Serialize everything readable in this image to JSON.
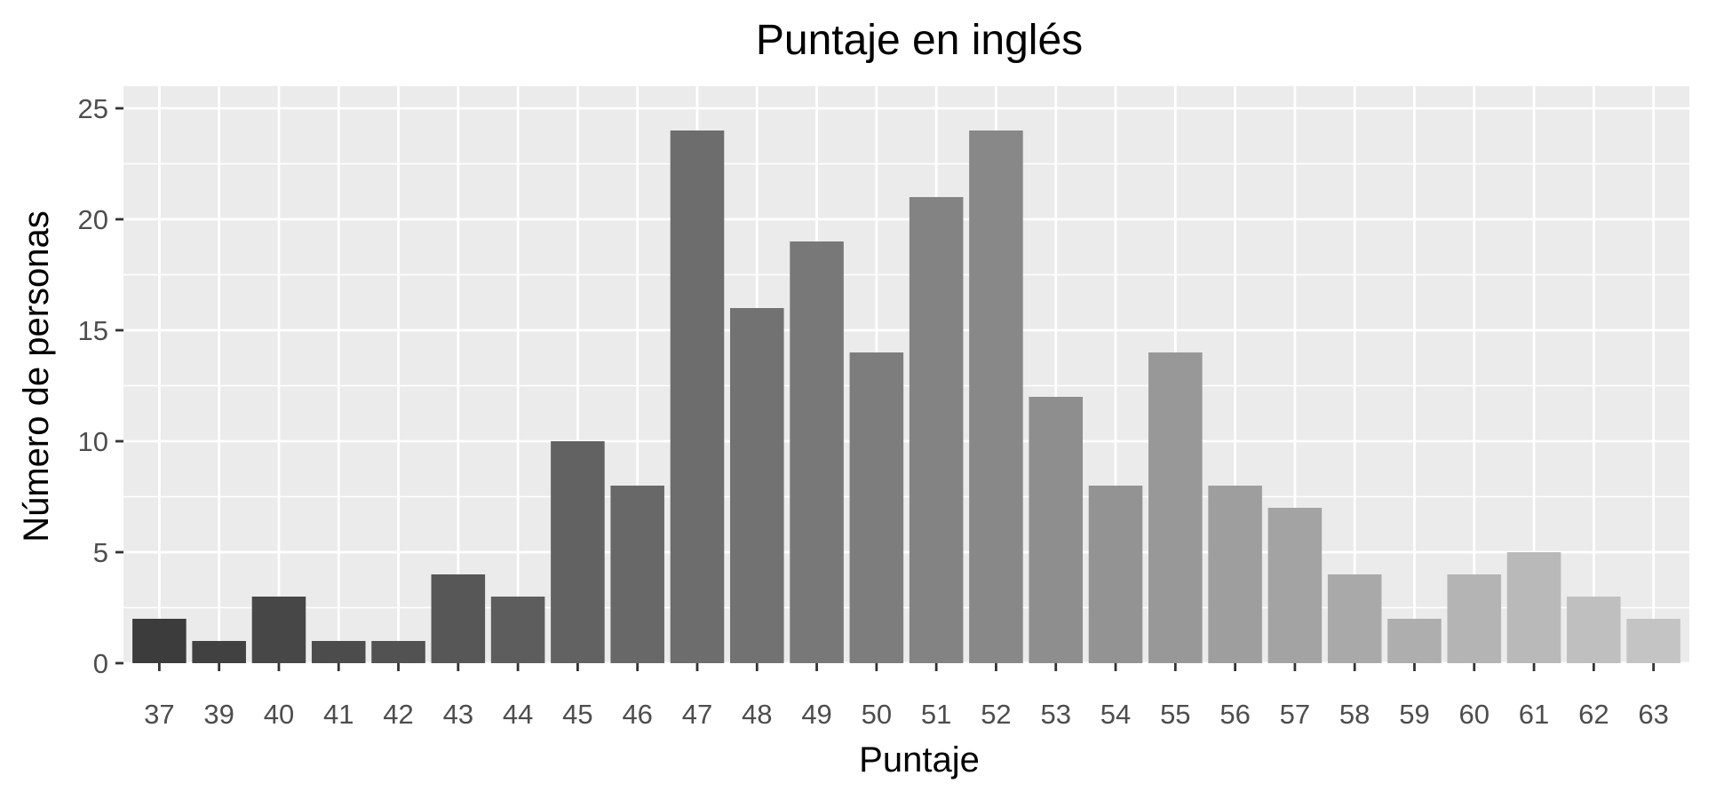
{
  "chart_data": {
    "type": "bar",
    "title": "Puntaje en inglés",
    "xlabel": "Puntaje",
    "ylabel": "Número de personas",
    "categories": [
      "37",
      "39",
      "40",
      "41",
      "42",
      "43",
      "44",
      "45",
      "46",
      "47",
      "48",
      "49",
      "50",
      "51",
      "52",
      "53",
      "54",
      "55",
      "56",
      "57",
      "58",
      "59",
      "60",
      "61",
      "62",
      "63"
    ],
    "values": [
      2,
      1,
      3,
      1,
      1,
      4,
      3,
      10,
      8,
      24,
      16,
      19,
      14,
      21,
      24,
      12,
      8,
      14,
      8,
      7,
      4,
      2,
      4,
      5,
      3,
      2
    ],
    "ylim": [
      0,
      26
    ],
    "yticks": [
      0,
      5,
      10,
      15,
      20,
      25
    ],
    "grid": true,
    "legend": "none",
    "colors": {
      "panel_background": "#ebebeb",
      "gridline": "#ffffff",
      "bar_dark": "#3c3c3c",
      "bar_light": "#c4c4c4",
      "tick_text": "#4d4d4d",
      "tick_mark": "#333333"
    }
  }
}
